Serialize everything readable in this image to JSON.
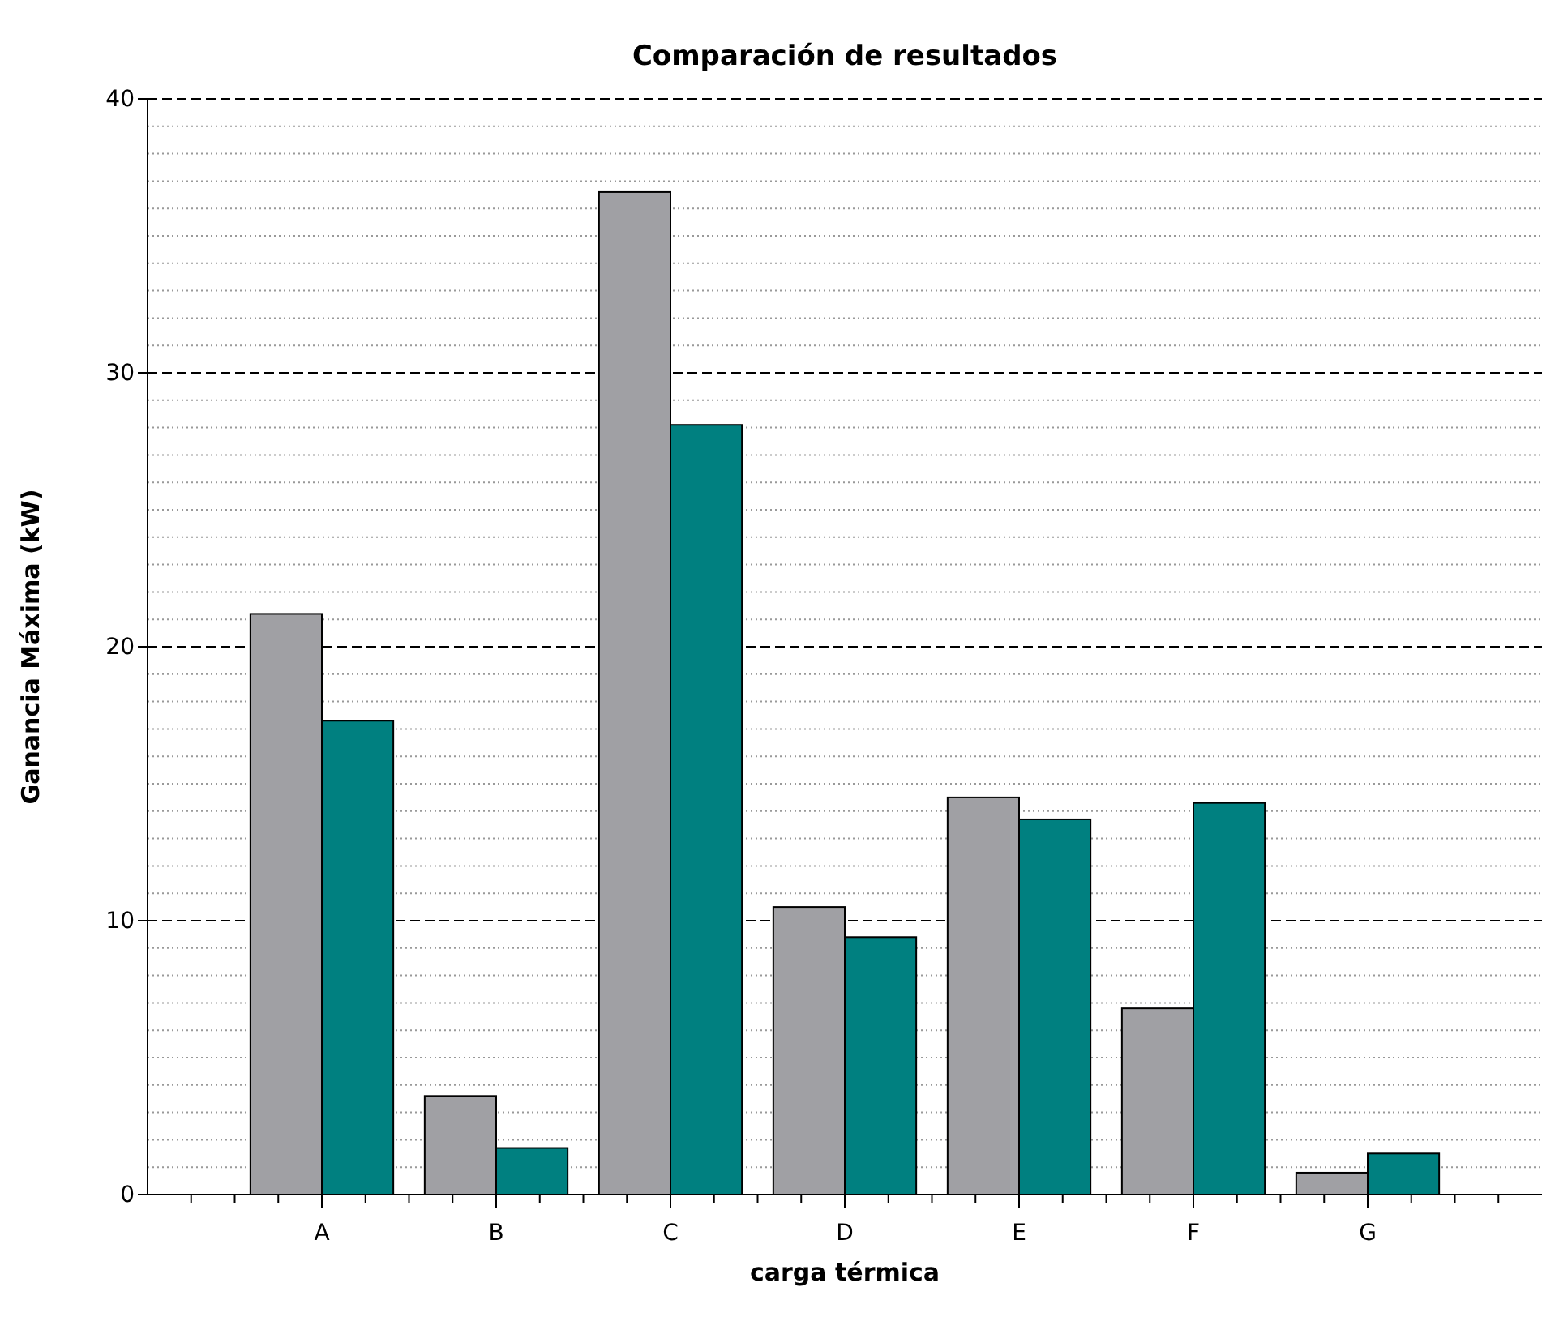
{
  "chart_data": {
    "type": "bar",
    "title": "Comparación de resultados",
    "xlabel": "carga térmica",
    "ylabel": "Ganancia Máxima (kW)",
    "categories": [
      "A",
      "B",
      "C",
      "D",
      "E",
      "F",
      "G"
    ],
    "series": [
      {
        "color": "#a0a0a4",
        "values": [
          21.2,
          3.6,
          36.6,
          10.5,
          14.5,
          6.8,
          0.8
        ]
      },
      {
        "color": "#008080",
        "values": [
          17.3,
          1.7,
          28.1,
          9.4,
          13.7,
          14.3,
          1.5
        ]
      }
    ],
    "ylim": [
      0,
      40
    ],
    "yticks": [
      0,
      {
        "value": 1,
        "label": null
      },
      {
        "value": 2,
        "label": null
      },
      {
        "value": 3,
        "label": null
      },
      {
        "value": 4,
        "label": null
      },
      {
        "value": 5,
        "label": null
      },
      {
        "value": 6,
        "label": null
      },
      {
        "value": 7,
        "label": null
      },
      {
        "value": 8,
        "label": null
      },
      {
        "value": 9,
        "label": null
      },
      10,
      {
        "value": 11,
        "label": null
      },
      {
        "value": 12,
        "label": null
      },
      {
        "value": 13,
        "label": null
      },
      {
        "value": 14,
        "label": null
      },
      {
        "value": 15,
        "label": null
      },
      {
        "value": 16,
        "label": null
      },
      {
        "value": 17,
        "label": null
      },
      {
        "value": 18,
        "label": null
      },
      {
        "value": 19,
        "label": null
      },
      20,
      {
        "value": 21,
        "label": null
      },
      {
        "value": 22,
        "label": null
      },
      {
        "value": 23,
        "label": null
      },
      {
        "value": 24,
        "label": null
      },
      {
        "value": 25,
        "label": null
      },
      {
        "value": 26,
        "label": null
      },
      {
        "value": 27,
        "label": null
      },
      {
        "value": 28,
        "label": null
      },
      {
        "value": 29,
        "label": null
      },
      30,
      {
        "value": 31,
        "label": null
      },
      {
        "value": 32,
        "label": null
      },
      {
        "value": 33,
        "label": null
      },
      {
        "value": 34,
        "label": null
      },
      {
        "value": 35,
        "label": null
      },
      {
        "value": 36,
        "label": null
      },
      {
        "value": 37,
        "label": null
      },
      {
        "value": 38,
        "label": null
      },
      {
        "value": 39,
        "label": null
      },
      40
    ],
    "grid": "y"
  }
}
